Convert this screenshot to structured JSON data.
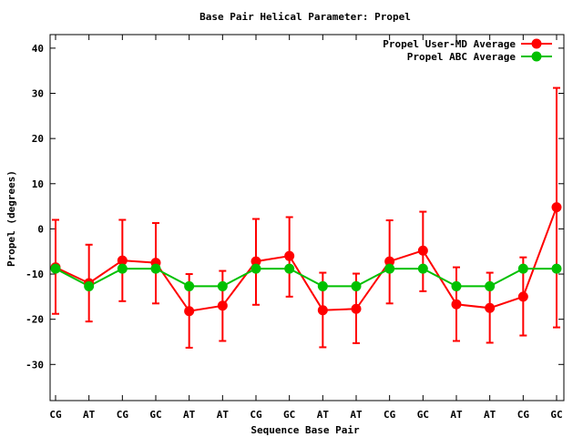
{
  "chart_data": {
    "type": "line",
    "title": "Base Pair Helical Parameter: Propel",
    "xlabel": "Sequence Base Pair",
    "ylabel": "Propel (degrees)",
    "categories": [
      "CG",
      "AT",
      "CG",
      "GC",
      "AT",
      "AT",
      "CG",
      "GC",
      "AT",
      "AT",
      "CG",
      "GC",
      "AT",
      "AT",
      "CG",
      "GC"
    ],
    "ylim": [
      -38,
      43
    ],
    "yticks": [
      -30,
      -20,
      -10,
      0,
      10,
      20,
      30,
      40
    ],
    "legend_position": "top-right",
    "grid": false,
    "series": [
      {
        "name": "Propel User-MD Average",
        "color": "#ff0000",
        "values": [
          -8.5,
          -12.0,
          -7.0,
          -7.5,
          -18.2,
          -17.0,
          -7.2,
          -6.0,
          -18.0,
          -17.7,
          -7.2,
          -4.8,
          -16.7,
          -17.5,
          -15.0,
          4.8
        ],
        "err_low": [
          -18.8,
          -20.5,
          -16.0,
          -16.5,
          -26.3,
          -24.8,
          -16.8,
          -15.0,
          -26.2,
          -25.3,
          -16.5,
          -13.8,
          -24.8,
          -25.2,
          -23.6,
          -21.8
        ],
        "err_high": [
          2.0,
          -3.5,
          2.0,
          1.3,
          -10.0,
          -9.3,
          2.2,
          2.6,
          -9.7,
          -9.9,
          1.9,
          3.8,
          -8.5,
          -9.7,
          -6.3,
          31.2
        ]
      },
      {
        "name": "Propel ABC Average",
        "color": "#00c000",
        "values": [
          -8.8,
          -12.7,
          -8.8,
          -8.8,
          -12.7,
          -12.7,
          -8.8,
          -8.8,
          -12.7,
          -12.7,
          -8.8,
          -8.8,
          -12.7,
          -12.7,
          -8.8,
          -8.8
        ]
      }
    ]
  }
}
